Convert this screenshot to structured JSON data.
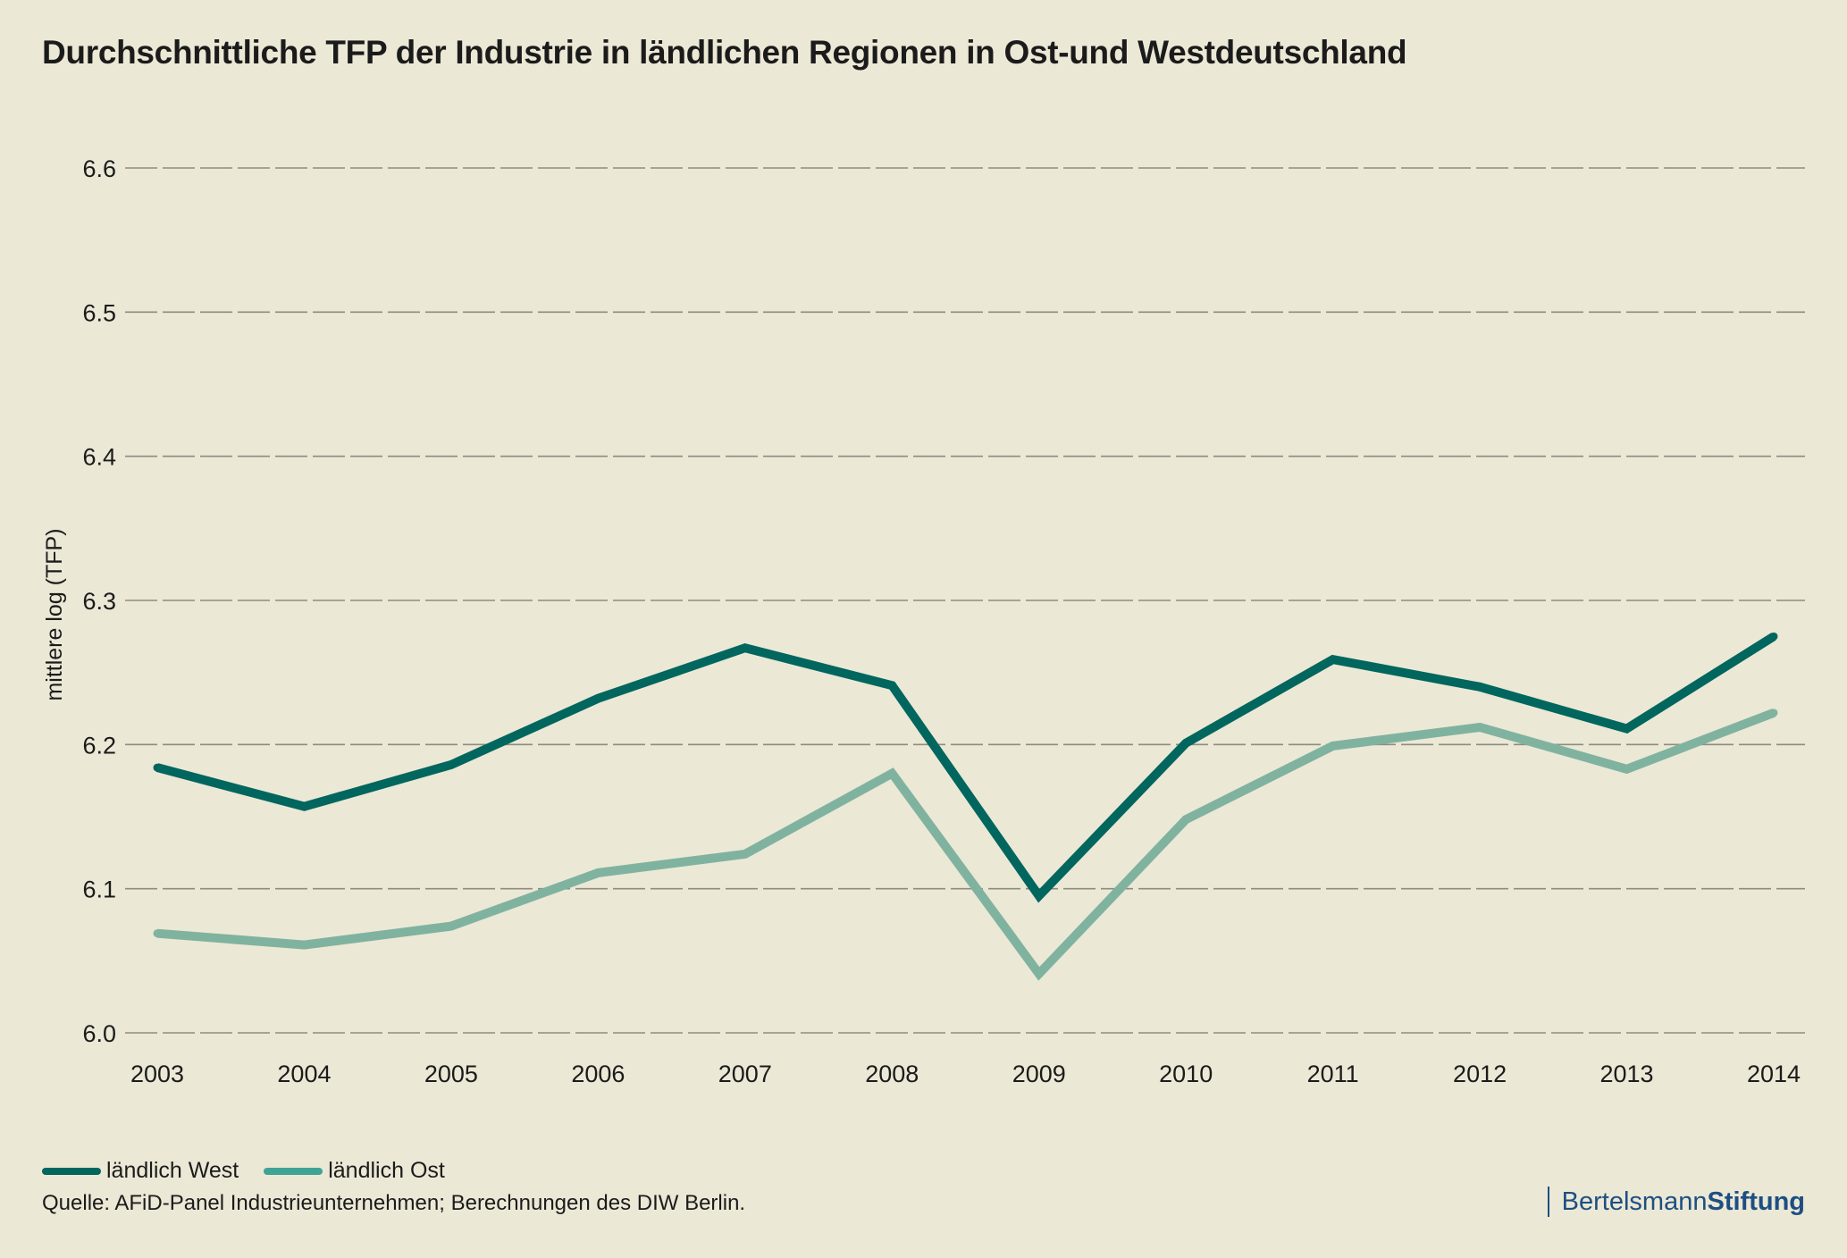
{
  "title": "Durchschnittliche TFP der Industrie in ländlichen Regionen in Ost-und Westdeutschland",
  "source": "Quelle: AFiD-Panel Industrieunternehmen; Berechnungen des DIW Berlin.",
  "brand": {
    "part1": "Bertelsmann",
    "part2": "Stiftung"
  },
  "chart_data": {
    "type": "line",
    "title": "Durchschnittliche TFP der Industrie in ländlichen Regionen in Ost-und Westdeutschland",
    "xlabel": "",
    "ylabel": "mittlere log (TFP)",
    "ylim": [
      6.0,
      6.6
    ],
    "yticks": [
      "6.0",
      "6.1",
      "6.2",
      "6.3",
      "6.4",
      "6.5",
      "6.6"
    ],
    "x": [
      "2003",
      "2004",
      "2005",
      "2006",
      "2007",
      "2008",
      "2009",
      "2010",
      "2011",
      "2012",
      "2013",
      "2014"
    ],
    "grid": true,
    "legend_position": "bottom-left",
    "series": [
      {
        "name": "ländlich West",
        "color": "#00665e",
        "values": [
          6.184,
          6.157,
          6.186,
          6.232,
          6.267,
          6.241,
          6.095,
          6.201,
          6.259,
          6.24,
          6.211,
          6.275
        ]
      },
      {
        "name": "ländlich Ost",
        "color": "#7fb3a0",
        "values": [
          6.069,
          6.061,
          6.074,
          6.111,
          6.124,
          6.18,
          6.041,
          6.148,
          6.199,
          6.212,
          6.183,
          6.222
        ]
      }
    ]
  }
}
